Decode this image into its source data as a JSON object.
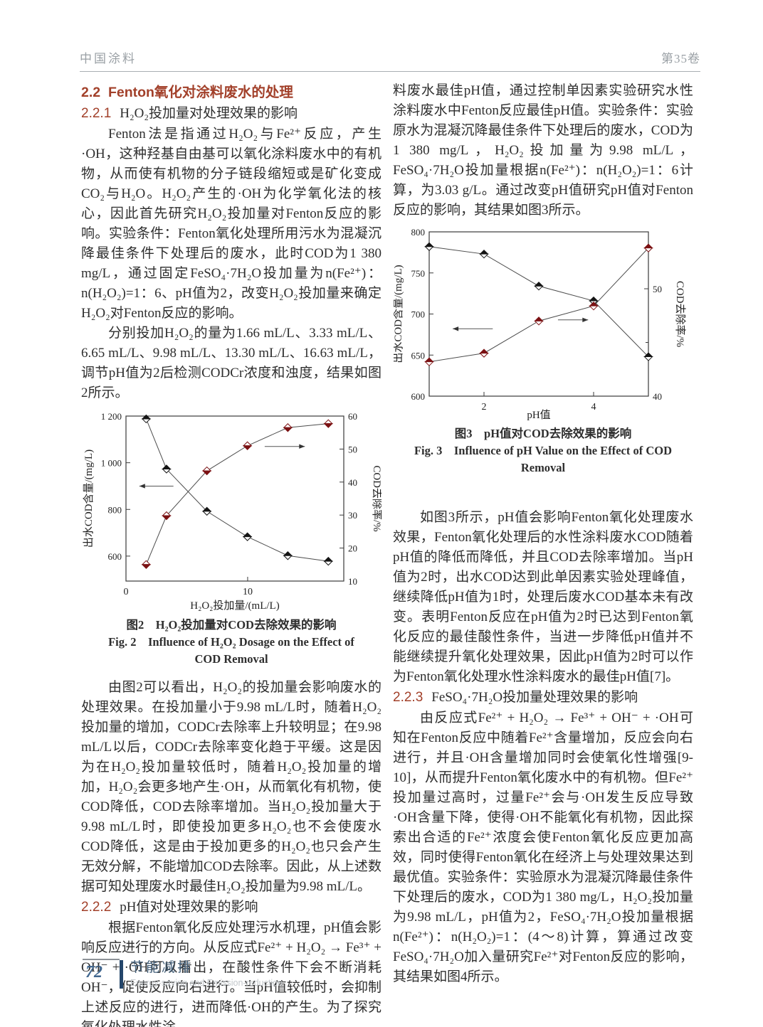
{
  "header": {
    "journal": "中国涂料",
    "volume": "第35卷"
  },
  "footer": {
    "page_number": "72",
    "section_cn": "节能减排",
    "section_en": "Energy-saving and Emission-reduction"
  },
  "left_column": {
    "h22": {
      "num": "2.2",
      "title": "Fenton氧化对涂料废水的处理"
    },
    "h221": {
      "num": "2.2.1",
      "title": "H₂O₂投加量对处理效果的影响"
    },
    "p1": "Fenton法是指通过H₂O₂与Fe²⁺反应，产生·OH，这种羟基自由基可以氧化涂料废水中的有机物，从而使有机物的分子链段缩短或是矿化变成CO₂与H₂O。H₂O₂产生的·OH为化学氧化法的核心，因此首先研究H₂O₂投加量对Fenton反应的影响。实验条件：Fenton氧化处理所用污水为混凝沉降最佳条件下处理后的废水，此时COD为1 380 mg/L，通过固定FeSO₄·7H₂O投加量为n(Fe²⁺)：n(H₂O₂)=1：6、pH值为2，改变H₂O₂投加量来确定H₂O₂对Fenton反应的影响。",
    "p2": "分别投加H₂O₂的量为1.66 mL/L、3.33 mL/L、6.65 mL/L、9.98 mL/L、13.30 mL/L、16.63 mL/L，调节pH值为2后检测CODCr浓度和浊度，结果如图2所示。",
    "p3": "由图2可以看出，H₂O₂的投加量会影响废水的处理效果。在投加量小于9.98 mL/L时，随着H₂O₂投加量的增加，CODCr去除率上升较明显；在9.98 mL/L以后，CODCr去除率变化趋于平缓。这是因为在H₂O₂投加量较低时，随着H₂O₂投加量的增加，H₂O₂会更多地产生·OH，从而氧化有机物，使COD降低，COD去除率增加。当H₂O₂投加量大于9.98 mL/L时，即使投加更多H₂O₂也不会使废水COD降低，这是由于投加更多的H₂O₂也只会产生无效分解，不能增加COD去除率。因此，从上述数据可知处理废水时最佳H₂O₂投加量为9.98 mL/L。",
    "h222": {
      "num": "2.2.2",
      "title": "pH值对处理效果的影响"
    },
    "p4": "根据Fenton氧化反应处理污水机理，pH值会影响反应进行的方向。从反应式Fe²⁺ + H₂O₂ → Fe³⁺ + OH⁻ + ·OH可以看出，在酸性条件下会不断消耗OH⁻，促使反应向右进行。当pH值较低时，会抑制上述反应的进行，进而降低·OH的产生。为了探究氧化处理水性涂"
  },
  "right_column": {
    "p5": "料废水最佳pH值，通过控制单因素实验研究水性涂料废水中Fenton反应最佳pH值。实验条件：实验原水为混凝沉降最佳条件下处理后的废水，COD为1 380 mg/L，H₂O₂投加量为9.98 mL/L，FeSO₄·7H₂O投加量根据n(Fe²⁺)：n(H₂O₂)=1：6计算，为3.03 g/L。通过改变pH值研究pH值对Fenton反应的影响，其结果如图3所示。",
    "p6": "如图3所示，pH值会影响Fenton氧化处理废水效果，Fenton氧化处理后的水性涂料废水COD随着pH值的降低而降低，并且COD去除率增加。当pH值为2时，出水COD达到此单因素实验处理峰值，继续降低pH值为1时，处理后废水COD基本未有改变。表明Fenton反应在pH值为2时已达到Fenton氧化反应的最佳酸性条件，当进一步降低pH值并不能继续提升氧化处理效果，因此pH值为2时可以作为Fenton氧化处理水性涂料废水的最佳pH值[7]。",
    "h223": {
      "num": "2.2.3",
      "title": "FeSO₄·7H₂O投加量处理效果的影响"
    },
    "p7": "由反应式Fe²⁺ + H₂O₂ → Fe³⁺ + OH⁻ + ·OH可知在Fenton反应中随着Fe²⁺含量增加，反应会向右进行，并且·OH含量增加同时会使氧化性增强[9-10]，从而提升Fenton氧化废水中的有机物。但Fe²⁺投加量过高时，过量Fe²⁺会与·OH发生反应导致·OH含量下降，使得·OH不能氧化有机物，因此探索出合适的Fe²⁺浓度会使Fenton氧化反应更加高效，同时使得Fenton氧化在经济上与处理效果达到最优值。实验条件：实验原水为混凝沉降最佳条件下处理后的废水，COD为1 380 mg/L，H₂O₂投加量为9.98 mL/L，pH值为2，FeSO₄·7H₂O投加量根据n(Fe²⁺)：n(H₂O₂)=1：(4～8)计算，算通过改变FeSO₄·7H₂O加入量研究Fe²⁺对Fenton反应的影响，其结果如图4所示。"
  },
  "chart_data": [
    {
      "type": "line",
      "title_cn": "图2　H₂O₂投加量对COD去除效果的影响",
      "title_en": "Fig. 2　Influence of H₂O₂ Dosage on the Effect of COD Removal",
      "xlabel": "H₂O₂投加量/(mL/L)",
      "ylabel_left": "出水COD含量/(mg/L)",
      "ylabel_right": "COD去除率/%",
      "x": [
        1.66,
        3.33,
        6.65,
        9.98,
        13.3,
        16.63
      ],
      "xlim": [
        0,
        17.9
      ],
      "xticks": [
        {
          "v": 0,
          "label": "0"
        },
        {
          "v": 10,
          "label": "10"
        }
      ],
      "y_left": {
        "lim": [
          493,
          1200
        ],
        "ticks": [
          {
            "v": 600,
            "label": "600"
          },
          {
            "v": 800,
            "label": "800"
          },
          {
            "v": 1000,
            "label": "1 000"
          },
          {
            "v": 1200,
            "label": "1 200"
          }
        ]
      },
      "y_right": {
        "lim": [
          10,
          60
        ],
        "ticks": [
          {
            "v": 10,
            "label": "10"
          },
          {
            "v": 20,
            "label": "20"
          },
          {
            "v": 30,
            "label": "30"
          },
          {
            "v": 40,
            "label": "40"
          },
          {
            "v": 50,
            "label": "50"
          },
          {
            "v": 60,
            "label": "60"
          }
        ],
        "minor_ticks": []
      },
      "grid": false,
      "legend": "none",
      "series": [
        {
          "name": "出水COD含量",
          "axis": "left",
          "values": [
            1188,
            973,
            792,
            683,
            602,
            578
          ],
          "marker_top": "#141414",
          "marker_bottom": "#ffffff",
          "marker_edge": "#141414"
        },
        {
          "name": "COD去除率",
          "axis": "right",
          "values": [
            15.0,
            29.8,
            43.4,
            51.0,
            56.5,
            57.7
          ],
          "marker_top": "#ffffff",
          "marker_bottom": "#7b1113",
          "marker_edge": "#7b1113"
        }
      ],
      "arrows": [
        {
          "dir": "left",
          "axis": "left",
          "y": 900,
          "x1": 1.1,
          "x2": 3.9
        },
        {
          "dir": "right",
          "axis": "right",
          "y": 50.8,
          "x1": 11.4,
          "x2": 14.7
        }
      ]
    },
    {
      "type": "line",
      "title_cn": "图3　pH值对COD去除效果的影响",
      "title_en": "Fig. 3　Influence of pH Value on the Effect of COD Removal",
      "xlabel": "pH值",
      "ylabel_left": "出水COD含量/(mg/L)",
      "ylabel_right": "COD去除率/%",
      "x": [
        1,
        2,
        3,
        4,
        5
      ],
      "xlim": [
        1,
        5
      ],
      "xticks": [
        {
          "v": 2,
          "label": "2"
        },
        {
          "v": 4,
          "label": "4"
        }
      ],
      "y_left": {
        "lim": [
          600,
          800
        ],
        "ticks": [
          {
            "v": 600,
            "label": "600"
          },
          {
            "v": 650,
            "label": "650"
          },
          {
            "v": 700,
            "label": "700"
          },
          {
            "v": 750,
            "label": "750"
          },
          {
            "v": 800,
            "label": "800"
          }
        ]
      },
      "y_right": {
        "lim": [
          40,
          55.3
        ],
        "ticks": [
          {
            "v": 40,
            "label": "40"
          },
          {
            "v": 50,
            "label": "50"
          }
        ],
        "minor_ticks": [
          45
        ]
      },
      "grid": false,
      "legend": "none",
      "series": [
        {
          "name": "出水COD含量",
          "axis": "left",
          "values": [
            782,
            773,
            734,
            716,
            648
          ],
          "marker_top": "#141414",
          "marker_bottom": "#ffffff",
          "marker_edge": "#141414"
        },
        {
          "name": "COD去除率",
          "axis": "right",
          "values": [
            43.2,
            44.0,
            47.0,
            48.4,
            53.8
          ],
          "marker_top": "#7b1113",
          "marker_bottom": "#ffffff",
          "marker_edge": "#7b1113"
        }
      ],
      "arrows": [
        {
          "dir": "left",
          "axis": "left",
          "y": 682,
          "x1": 1.43,
          "x2": 2.16
        },
        {
          "dir": "right",
          "axis": "right",
          "y": 47.1,
          "x1": 3.35,
          "x2": 3.9
        }
      ]
    }
  ]
}
